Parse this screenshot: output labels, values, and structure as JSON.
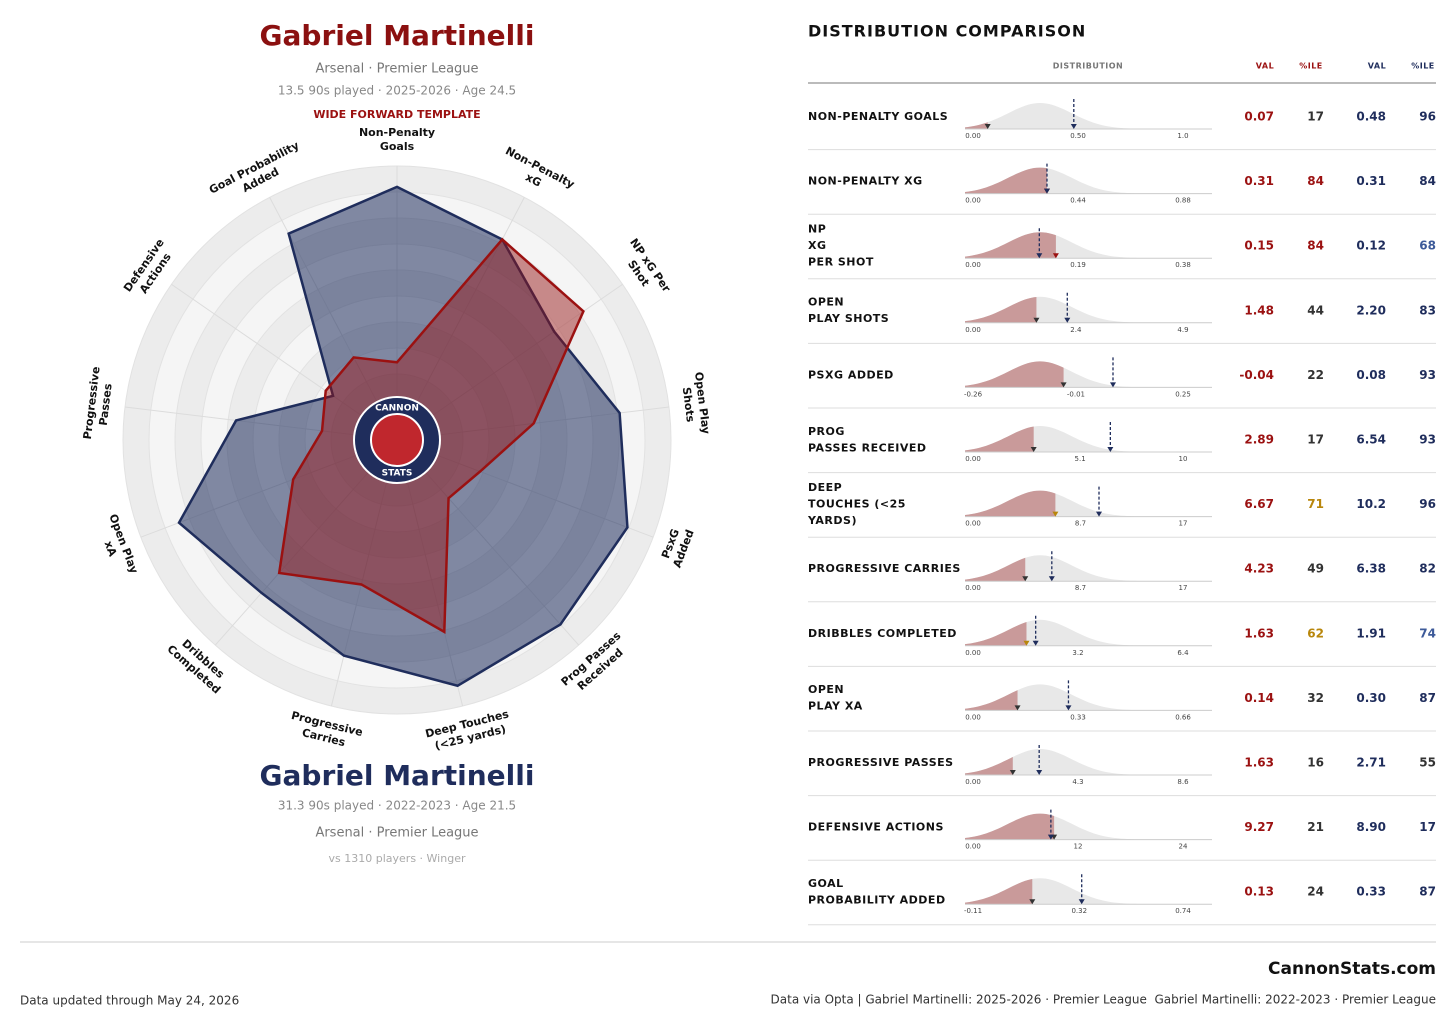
{
  "left": {
    "title": "Gabriel Martinelli",
    "club": "Arsenal · Premier League",
    "season_line": "13.5 90s played · 2025-2026 · Age 24.5",
    "template": "WIDE FORWARD TEMPLATE",
    "compare_name": "Gabriel Martinelli",
    "compare_season_line": "31.3 90s played · 2022-2023 · Age 21.5",
    "compare_club": "Arsenal · Premier League",
    "pool": "vs 1310 players · Winger"
  },
  "logo": [
    "CANNON",
    "STATS"
  ],
  "chart_data": {
    "type": "radar",
    "categories": [
      [
        "Non-Penalty",
        "Goals"
      ],
      [
        "Non-Penalty",
        "xG"
      ],
      [
        "NP xG Per",
        "Shot"
      ],
      [
        "Open Play",
        "Shots"
      ],
      [
        "PsxG",
        "Added"
      ],
      [
        "Prog Passes",
        "Received"
      ],
      [
        "Deep Touches",
        "(<25 yards)"
      ],
      [
        "Progressive",
        "Carries"
      ],
      [
        "Dribbles",
        "Completed"
      ],
      [
        "Open Play",
        "xA"
      ],
      [
        "Progressive",
        "Passes"
      ],
      [
        "Defensive",
        "Actions"
      ],
      [
        "Goal Probability",
        "Added"
      ]
    ],
    "ylim": [
      0,
      100
    ],
    "series": [
      {
        "color": "#1f2d5c",
        "values": [
          96,
          84,
          68,
          83,
          93,
          93,
          96,
          82,
          74,
          87,
          55,
          17,
          87
        ]
      },
      {
        "color": "#9b1111",
        "values": [
          17,
          84,
          84,
          44,
          22,
          17,
          71,
          49,
          62,
          32,
          16,
          21,
          24
        ]
      }
    ]
  },
  "table": {
    "title": "DISTRIBUTION COMPARISON",
    "headers": [
      "DISTRIBUTION",
      "VAL",
      "%ILE",
      "VAL",
      "%ILE"
    ],
    "rows": [
      {
        "label": [
          "NON-PENALTY GOALS"
        ],
        "ticks": [
          "0.00",
          "0.50",
          "1.0"
        ],
        "val1": "0.07",
        "pct1": "17",
        "pct1_color": "#333333",
        "val2": "0.48",
        "pct2": "96",
        "pct2_color": "#1f2d5c"
      },
      {
        "label": [
          "NON-PENALTY XG"
        ],
        "ticks": [
          "0.00",
          "0.44",
          "0.88"
        ],
        "val1": "0.31",
        "pct1": "84",
        "pct1_color": "#9b1111",
        "val2": "0.31",
        "pct2": "84",
        "pct2_color": "#1f2d5c"
      },
      {
        "label": [
          "NP",
          "XG",
          "PER SHOT"
        ],
        "ticks": [
          "0.00",
          "0.19",
          "0.38"
        ],
        "val1": "0.15",
        "pct1": "84",
        "pct1_color": "#9b1111",
        "val2": "0.12",
        "pct2": "68",
        "pct2_color": "#3d5a99"
      },
      {
        "label": [
          "OPEN",
          "PLAY SHOTS"
        ],
        "ticks": [
          "0.00",
          "2.4",
          "4.9"
        ],
        "val1": "1.48",
        "pct1": "44",
        "pct1_color": "#333333",
        "val2": "2.20",
        "pct2": "83",
        "pct2_color": "#1f2d5c"
      },
      {
        "label": [
          "PSXG ADDED"
        ],
        "ticks": [
          "-0.26",
          "-0.01",
          "0.25"
        ],
        "val1": "-0.04",
        "pct1": "22",
        "pct1_color": "#333333",
        "val2": "0.08",
        "pct2": "93",
        "pct2_color": "#1f2d5c"
      },
      {
        "label": [
          "PROG",
          "PASSES RECEIVED"
        ],
        "ticks": [
          "0.00",
          "5.1",
          "10"
        ],
        "val1": "2.89",
        "pct1": "17",
        "pct1_color": "#333333",
        "val2": "6.54",
        "pct2": "93",
        "pct2_color": "#1f2d5c"
      },
      {
        "label": [
          "DEEP",
          "TOUCHES (<25",
          "YARDS)"
        ],
        "ticks": [
          "0.00",
          "8.7",
          "17"
        ],
        "val1": "6.67",
        "pct1": "71",
        "pct1_color": "#b8860b",
        "val2": "10.2",
        "pct2": "96",
        "pct2_color": "#1f2d5c"
      },
      {
        "label": [
          "PROGRESSIVE CARRIES"
        ],
        "ticks": [
          "0.00",
          "8.7",
          "17"
        ],
        "val1": "4.23",
        "pct1": "49",
        "pct1_color": "#333333",
        "val2": "6.38",
        "pct2": "82",
        "pct2_color": "#1f2d5c"
      },
      {
        "label": [
          "DRIBBLES COMPLETED"
        ],
        "ticks": [
          "0.00",
          "3.2",
          "6.4"
        ],
        "val1": "1.63",
        "pct1": "62",
        "pct1_color": "#b8860b",
        "val2": "1.91",
        "pct2": "74",
        "pct2_color": "#3d5a99"
      },
      {
        "label": [
          "OPEN",
          "PLAY XA"
        ],
        "ticks": [
          "0.00",
          "0.33",
          "0.66"
        ],
        "val1": "0.14",
        "pct1": "32",
        "pct1_color": "#333333",
        "val2": "0.30",
        "pct2": "87",
        "pct2_color": "#1f2d5c"
      },
      {
        "label": [
          "PROGRESSIVE PASSES"
        ],
        "ticks": [
          "0.00",
          "4.3",
          "8.6"
        ],
        "val1": "1.63",
        "pct1": "16",
        "pct1_color": "#333333",
        "val2": "2.71",
        "pct2": "55",
        "pct2_color": "#333333"
      },
      {
        "label": [
          "DEFENSIVE ACTIONS"
        ],
        "ticks": [
          "0.00",
          "12",
          "24"
        ],
        "val1": "9.27",
        "pct1": "21",
        "pct1_color": "#333333",
        "val2": "8.90",
        "pct2": "17",
        "pct2_color": "#1f2d5c"
      },
      {
        "label": [
          "GOAL",
          "PROBABILITY ADDED"
        ],
        "ticks": [
          "-0.11",
          "0.32",
          "0.74"
        ],
        "val1": "0.13",
        "pct1": "24",
        "pct1_color": "#333333",
        "val2": "0.33",
        "pct2": "87",
        "pct2_color": "#1f2d5c"
      }
    ]
  },
  "footer": {
    "brand": "CannonStats.com",
    "updated": "Data updated through May 24, 2026",
    "source": "Data via Opta | Gabriel Martinelli: 2025-2026 · Premier League  Gabriel Martinelli: 2022-2023 · Premier League"
  }
}
